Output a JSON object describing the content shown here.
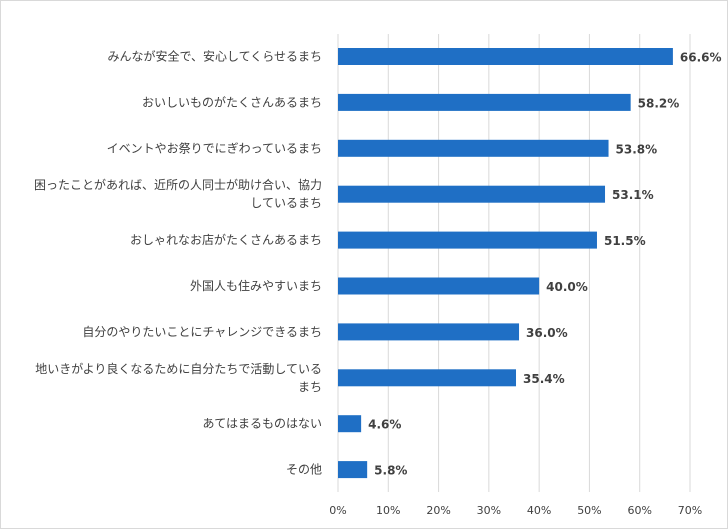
{
  "chart_data": {
    "type": "bar",
    "orientation": "horizontal",
    "categories": [
      [
        "みんなが安全で、安心してくらせるまち"
      ],
      [
        "おいしいものがたくさんあるまち"
      ],
      [
        "イベントやお祭りでにぎわっているまち"
      ],
      [
        "困ったことがあれば、近所の人同士が助け合い、協力",
        "しているまち"
      ],
      [
        "おしゃれなお店がたくさんあるまち"
      ],
      [
        "外国人も住みやすいまち"
      ],
      [
        "自分のやりたいことにチャレンジできるまち"
      ],
      [
        "地いきがより良くなるために自分たちで活動している",
        "まち"
      ],
      [
        "あてはまるものはない"
      ],
      [
        "その他"
      ]
    ],
    "values": [
      66.6,
      58.2,
      53.8,
      53.1,
      51.5,
      40.0,
      36.0,
      35.4,
      4.6,
      5.8
    ],
    "data_labels": [
      "66.6%",
      "58.2%",
      "53.8%",
      "53.1%",
      "51.5%",
      "40.0%",
      "36.0%",
      "35.4%",
      "4.6%",
      "5.8%"
    ],
    "xlim": [
      0,
      70
    ],
    "xticks": [
      0,
      10,
      20,
      30,
      40,
      50,
      60,
      70
    ],
    "xtick_labels": [
      "0%",
      "10%",
      "20%",
      "30%",
      "40%",
      "50%",
      "60%",
      "70%"
    ],
    "grid": "vertical",
    "bar_color": "#1f6fc5",
    "grid_color": "#d9d9d9",
    "text_color": "#404040"
  }
}
